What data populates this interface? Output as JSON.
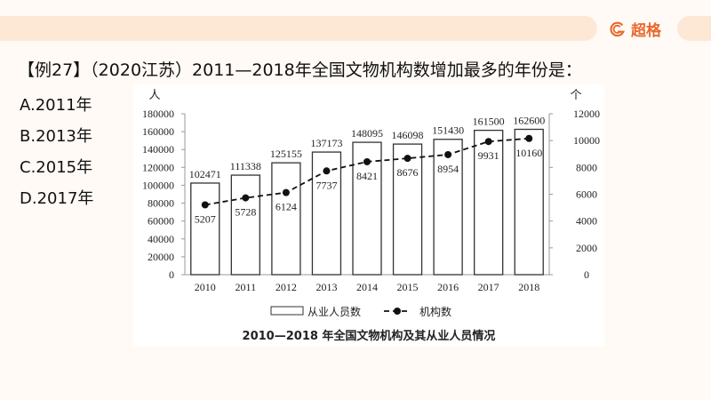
{
  "brand": {
    "name": "超格",
    "color": "#e8692e"
  },
  "question": "【例27】（2020江苏）2011—2018年全国文物机构数增加最多的年份是：",
  "options": [
    "A.2011年",
    "B.2013年",
    "C.2015年",
    "D.2017年"
  ],
  "chart_data": {
    "type": "bar+line",
    "title": "2010—2018 年全国文物机构及其从业人员情况",
    "categories": [
      "2010",
      "2011",
      "2012",
      "2013",
      "2014",
      "2015",
      "2016",
      "2017",
      "2018"
    ],
    "left_axis": {
      "unit": "人",
      "ylim": [
        0,
        180000
      ],
      "ticks": [
        "0",
        "20000",
        "40000",
        "60000",
        "80000",
        "100000",
        "120000",
        "140000",
        "160000",
        "180000"
      ]
    },
    "right_axis": {
      "unit": "个",
      "ylim": [
        0,
        12000
      ],
      "ticks": [
        "0",
        "2000",
        "4000",
        "6000",
        "8000",
        "10000",
        "12000"
      ]
    },
    "series": [
      {
        "name": "从业人员数",
        "type": "bar",
        "axis": "left",
        "values": [
          102471,
          111338,
          125155,
          137173,
          148095,
          146098,
          151430,
          161500,
          162600
        ]
      },
      {
        "name": "机构数",
        "type": "line",
        "axis": "right",
        "style": "dashed",
        "values": [
          5207,
          5728,
          6124,
          7737,
          8421,
          8676,
          8954,
          9931,
          10160
        ]
      }
    ],
    "legend": "bottom",
    "grid": false
  }
}
